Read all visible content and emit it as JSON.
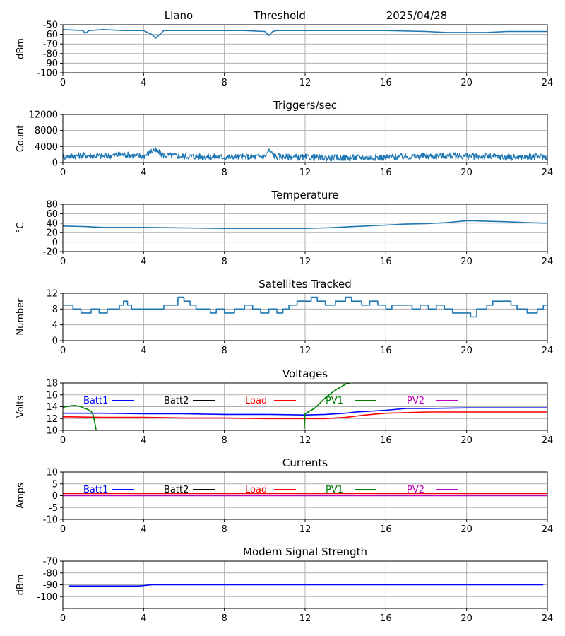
{
  "header": {
    "station": "Llano",
    "mode": "Threshold",
    "date": "2025/04/28"
  },
  "colors": {
    "default": "#1f77b4",
    "batt1": "#0000ff",
    "batt2": "#000000",
    "load": "#ff0000",
    "pv1": "#008000",
    "pv2": "#bf00bf",
    "grid": "#b0b0b0"
  },
  "chart_data": [
    {
      "type": "line",
      "title": "",
      "ylabel": "dBm",
      "xlim": [
        0,
        24
      ],
      "xticks": [
        0,
        4,
        8,
        12,
        16,
        20,
        24
      ],
      "ylim": [
        -100,
        -50
      ],
      "yticks": [
        -100,
        -90,
        -80,
        -70,
        -60,
        -50
      ],
      "grid": true,
      "series": [
        {
          "color": "default",
          "x": [
            0,
            1,
            1.1,
            1.3,
            2,
            3,
            4,
            4.4,
            4.6,
            4.8,
            5,
            6,
            7,
            8,
            9,
            10,
            10.2,
            10.4,
            10.6,
            12,
            14,
            16,
            18,
            19,
            20,
            21,
            22,
            23,
            24
          ],
          "y": [
            -55,
            -56,
            -59,
            -56,
            -55,
            -56,
            -56,
            -60,
            -64,
            -60,
            -56,
            -56,
            -56,
            -56,
            -56,
            -57,
            -61,
            -57,
            -56,
            -56,
            -56,
            -56,
            -57,
            -58,
            -58,
            -58,
            -57,
            -57,
            -57
          ]
        }
      ]
    },
    {
      "type": "line",
      "title": "Triggers/sec",
      "ylabel": "Count",
      "xlim": [
        0,
        24
      ],
      "xticks": [
        0,
        4,
        8,
        12,
        16,
        20,
        24
      ],
      "ylim": [
        0,
        12000
      ],
      "yticks": [
        0,
        4000,
        8000,
        12000
      ],
      "grid": true,
      "noise": 1600,
      "series": [
        {
          "color": "default",
          "x": [
            0,
            1,
            2,
            3,
            4,
            4.5,
            5,
            6,
            7,
            8,
            9,
            10,
            10.2,
            10.5,
            11,
            12,
            13,
            14,
            15,
            16,
            17,
            18,
            19,
            20,
            21,
            22,
            23,
            24
          ],
          "y": [
            1500,
            1800,
            1600,
            2000,
            1500,
            3200,
            1800,
            1600,
            1500,
            1400,
            1400,
            1500,
            3000,
            1600,
            1400,
            1300,
            1200,
            1200,
            1300,
            1300,
            1500,
            1600,
            1700,
            1600,
            1500,
            1300,
            1400,
            1500
          ]
        }
      ]
    },
    {
      "type": "line",
      "title": "Temperature",
      "ylabel": "°C",
      "xlim": [
        0,
        24
      ],
      "xticks": [
        0,
        4,
        8,
        12,
        16,
        20,
        24
      ],
      "ylim": [
        -20,
        80
      ],
      "yticks": [
        -20,
        0,
        20,
        40,
        60,
        80
      ],
      "grid": true,
      "series": [
        {
          "color": "default",
          "x": [
            0,
            1,
            2,
            4,
            6,
            8,
            10,
            12,
            13,
            14,
            15,
            16,
            17,
            18,
            19,
            20,
            20.3,
            21,
            22,
            23,
            24
          ],
          "y": [
            34,
            33,
            31,
            31,
            30,
            29,
            29,
            29,
            30,
            32,
            34,
            36,
            38,
            39,
            41,
            45,
            45,
            44,
            43,
            41,
            40
          ]
        }
      ]
    },
    {
      "type": "line",
      "title": "Satellites Tracked",
      "ylabel": "Number",
      "xlim": [
        0,
        24
      ],
      "xticks": [
        0,
        4,
        8,
        12,
        16,
        20,
        24
      ],
      "ylim": [
        0,
        12
      ],
      "yticks": [
        0,
        4,
        8,
        12
      ],
      "grid": true,
      "step": true,
      "series": [
        {
          "color": "default",
          "x": [
            0,
            0.3,
            0.5,
            0.9,
            1.4,
            1.8,
            2.2,
            2.8,
            3,
            3.2,
            3.4,
            4.2,
            4.5,
            5,
            5.7,
            6,
            6.3,
            6.6,
            7,
            7.3,
            7.6,
            7.8,
            8,
            8.5,
            9,
            9.4,
            9.8,
            10.2,
            10.6,
            10.9,
            11.2,
            11.6,
            11.9,
            12.3,
            12.6,
            13,
            13.5,
            14,
            14.3,
            14.8,
            15.2,
            15.6,
            16,
            16.3,
            16.8,
            17.3,
            17.7,
            18.1,
            18.5,
            18.9,
            19.3,
            19.8,
            20.2,
            20.5,
            21,
            21.3,
            21.7,
            22.2,
            22.5,
            23,
            23.5,
            23.8,
            24
          ],
          "y": [
            9,
            9,
            8,
            7,
            8,
            7,
            8,
            9,
            10,
            9,
            8,
            8,
            8,
            9,
            11,
            10,
            9,
            8,
            8,
            7,
            8,
            8,
            7,
            8,
            9,
            8,
            7,
            8,
            7,
            8,
            9,
            10,
            10,
            11,
            10,
            9,
            10,
            11,
            10,
            9,
            10,
            9,
            8,
            9,
            9,
            8,
            9,
            8,
            9,
            8,
            7,
            7,
            6,
            8,
            9,
            10,
            10,
            9,
            8,
            7,
            8,
            9,
            9
          ]
        }
      ]
    },
    {
      "type": "line",
      "title": "Voltages",
      "ylabel": "Volts",
      "xlim": [
        0,
        24
      ],
      "xticks": [
        0,
        4,
        8,
        12,
        16,
        20,
        24
      ],
      "ylim": [
        10,
        18
      ],
      "yticks": [
        10,
        12,
        14,
        16,
        18
      ],
      "grid": true,
      "legend": [
        {
          "name": "Batt1",
          "color": "batt1"
        },
        {
          "name": "Batt2",
          "color": "batt2"
        },
        {
          "name": "Load",
          "color": "load"
        },
        {
          "name": "PV1",
          "color": "pv1"
        },
        {
          "name": "PV2",
          "color": "pv2"
        }
      ],
      "series": [
        {
          "color": "batt1",
          "x": [
            0,
            2,
            4,
            6,
            8,
            10,
            12,
            13,
            14,
            14.5,
            15,
            16,
            17,
            18,
            20,
            22,
            24
          ],
          "y": [
            12.9,
            12.9,
            12.8,
            12.8,
            12.7,
            12.7,
            12.6,
            12.7,
            12.9,
            13.1,
            13.2,
            13.4,
            13.7,
            13.7,
            13.8,
            13.8,
            13.8
          ]
        },
        {
          "color": "load",
          "x": [
            0,
            2,
            4,
            6,
            8,
            10,
            12,
            13,
            14,
            15,
            16,
            17,
            18,
            20,
            22,
            24
          ],
          "y": [
            12.3,
            12.2,
            12.2,
            12.1,
            12.1,
            12.0,
            12.0,
            12.0,
            12.2,
            12.6,
            12.9,
            13.0,
            13.1,
            13.1,
            13.1,
            13.1
          ]
        },
        {
          "color": "pv1",
          "x": [
            0,
            0.3,
            0.6,
            0.9,
            1,
            1.2,
            1.4,
            1.5,
            1.6,
            1.65
          ],
          "y": [
            13.9,
            14.1,
            14.2,
            14.0,
            13.8,
            13.6,
            13.2,
            12.6,
            11.0,
            10.0
          ]
        },
        {
          "color": "pv1",
          "x": [
            11.95,
            12,
            12.5,
            13,
            13.5,
            14,
            14.2
          ],
          "y": [
            10.2,
            12.8,
            13.8,
            15.5,
            16.8,
            17.8,
            18.0
          ]
        }
      ]
    },
    {
      "type": "line",
      "title": "Currents",
      "ylabel": "Amps",
      "xlim": [
        0,
        24
      ],
      "xticks": [
        0,
        4,
        8,
        12,
        16,
        20,
        24
      ],
      "ylim": [
        -10,
        10
      ],
      "yticks": [
        -10,
        -5,
        0,
        5,
        10
      ],
      "grid": true,
      "legend": [
        {
          "name": "Batt1",
          "color": "batt1"
        },
        {
          "name": "Batt2",
          "color": "batt2"
        },
        {
          "name": "Load",
          "color": "load"
        },
        {
          "name": "PV1",
          "color": "pv1"
        },
        {
          "name": "PV2",
          "color": "pv2"
        }
      ],
      "series": [
        {
          "color": "load",
          "x": [
            0,
            24
          ],
          "y": [
            0.9,
            0.9
          ]
        },
        {
          "color": "batt1",
          "x": [
            0,
            24
          ],
          "y": [
            0.2,
            0.2
          ]
        },
        {
          "color": "pv2",
          "x": [
            0,
            24
          ],
          "y": [
            0.0,
            0.0
          ]
        }
      ]
    },
    {
      "type": "line",
      "title": "Modem Signal Strength",
      "ylabel": "dBm",
      "xlim": [
        0,
        24
      ],
      "xticks": [
        0,
        4,
        8,
        12,
        16,
        20,
        24
      ],
      "ylim": [
        -110,
        -70
      ],
      "yticks": [
        -100,
        -90,
        -80,
        -70
      ],
      "grid": true,
      "series": [
        {
          "color": "batt1",
          "x": [
            0.3,
            3.8,
            4.4,
            23.8
          ],
          "y": [
            -91,
            -91,
            -90,
            -90
          ]
        }
      ]
    }
  ]
}
